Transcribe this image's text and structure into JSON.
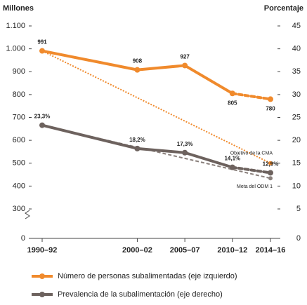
{
  "chart_data": {
    "type": "line",
    "y_label": "Millones",
    "y2_label": "Porcentaje",
    "categories": [
      "1990–92",
      "2000–02",
      "2005–07",
      "2010–12",
      "2014–16"
    ],
    "ylim": [
      0,
      1100
    ],
    "yticks": [
      0,
      300,
      400,
      500,
      600,
      700,
      800,
      900,
      {
        "value": 1000,
        "label": "1.000"
      },
      {
        "value": 1100,
        "label": "1.100"
      }
    ],
    "y_break": [
      0,
      300
    ],
    "y2lim": [
      0,
      45
    ],
    "y2ticks": [
      0,
      5,
      10,
      15,
      20,
      25,
      30,
      35,
      40,
      45
    ],
    "y2_break": [
      0,
      5
    ],
    "grid": false,
    "series": [
      {
        "name": "Número de personas subalimentadas (eje izquierdo)",
        "color": "#f08a2c",
        "axis": "y",
        "values": [
          991,
          908,
          927,
          805,
          780
        ]
      },
      {
        "name": "Prevalencia de la subalimentación (eje derecho)",
        "color": "#6d625e",
        "axis": "y2",
        "values": [
          23.3,
          18.2,
          17.3,
          14.1,
          12.9
        ],
        "value_labels": [
          "23,3%",
          "18,2%",
          "17,3%",
          "14,1%",
          "12,9%"
        ]
      }
    ],
    "targets": [
      {
        "label": "Objetivo de la CMA",
        "color": "#f08a2c",
        "axis": "y",
        "values": [
          991,
          null,
          null,
          null,
          500
        ]
      },
      {
        "label": "Meta del ODM 1",
        "color": "#8a807c",
        "axis": "y2",
        "values": [
          23.3,
          null,
          null,
          null,
          11.7
        ]
      }
    ]
  }
}
